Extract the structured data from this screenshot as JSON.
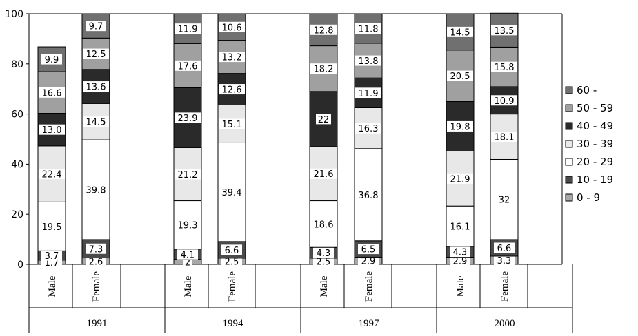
{
  "chart_data": {
    "type": "bar",
    "stacked": true,
    "years": [
      "1991",
      "1994",
      "1997",
      "2000"
    ],
    "genders": [
      "Male",
      "Female"
    ],
    "categories": [
      {
        "year": "1991",
        "gender": "Male"
      },
      {
        "year": "1991",
        "gender": "Female"
      },
      {
        "year": "1994",
        "gender": "Male"
      },
      {
        "year": "1994",
        "gender": "Female"
      },
      {
        "year": "1997",
        "gender": "Male"
      },
      {
        "year": "1997",
        "gender": "Female"
      },
      {
        "year": "2000",
        "gender": "Male"
      },
      {
        "year": "2000",
        "gender": "Female"
      }
    ],
    "series": [
      {
        "name": "0 - 9",
        "color": "#a8a8a8",
        "values": [
          1.7,
          2.6,
          2.0,
          2.5,
          2.5,
          2.9,
          2.9,
          3.3
        ],
        "labels": [
          "1.7",
          "2.6",
          "2",
          "2.5",
          "2.5",
          "2.9",
          "2.9",
          "3.3"
        ]
      },
      {
        "name": "10 - 19",
        "color": "#4a4a4a",
        "values": [
          3.7,
          7.3,
          4.1,
          6.6,
          4.3,
          6.5,
          4.3,
          6.6
        ],
        "labels": [
          "3.7",
          "7.3",
          "4.1",
          "6.6",
          "4.3",
          "6.5",
          "4.3",
          "6.6"
        ]
      },
      {
        "name": "20 - 29",
        "color": "#ffffff",
        "values": [
          19.5,
          39.8,
          19.3,
          39.4,
          18.6,
          36.8,
          16.1,
          32.0
        ],
        "labels": [
          "19.5",
          "39.8",
          "19.3",
          "39.4",
          "18.6",
          "36.8",
          "16.1",
          "32"
        ]
      },
      {
        "name": "30 - 39",
        "color": "#e8e8e8",
        "values": [
          22.4,
          14.5,
          21.2,
          15.1,
          21.6,
          16.3,
          21.9,
          18.1
        ],
        "labels": [
          "22.4",
          "14.5",
          "21.2",
          "15.1",
          "21.6",
          "16.3",
          "21.9",
          "18.1"
        ]
      },
      {
        "name": "40 - 49",
        "color": "#2a2a2a",
        "values": [
          13.0,
          13.6,
          23.9,
          12.6,
          22.0,
          11.9,
          19.8,
          10.9
        ],
        "labels": [
          "13.0",
          "13.6",
          "23.9",
          "12.6",
          "22",
          "11.9",
          "19.8",
          "10.9"
        ]
      },
      {
        "name": "50 - 59",
        "color": "#a0a0a0",
        "values": [
          16.6,
          12.5,
          17.6,
          13.2,
          18.2,
          13.8,
          20.5,
          15.8
        ],
        "labels": [
          "16.6",
          "12.5",
          "17.6",
          "13.2",
          "18.2",
          "13.8",
          "20.5",
          "15.8"
        ]
      },
      {
        "name": "60 -",
        "color": "#707070",
        "values": [
          9.9,
          9.7,
          11.9,
          10.6,
          12.8,
          11.8,
          14.5,
          13.5
        ],
        "labels": [
          "9.9",
          "9.7",
          "11.9",
          "10.6",
          "12.8",
          "11.8",
          "14.5",
          "13.5"
        ]
      }
    ],
    "legend_order": [
      "60 -",
      "50 - 59",
      "40 - 49",
      "30 - 39",
      "20 - 29",
      "10 - 19",
      "0 - 9"
    ],
    "legend_position": "right",
    "y_ticks": [
      0,
      20,
      40,
      60,
      80,
      100
    ],
    "ylim": [
      0,
      100
    ],
    "grid": false,
    "title": "",
    "xlabel": "",
    "ylabel": ""
  }
}
